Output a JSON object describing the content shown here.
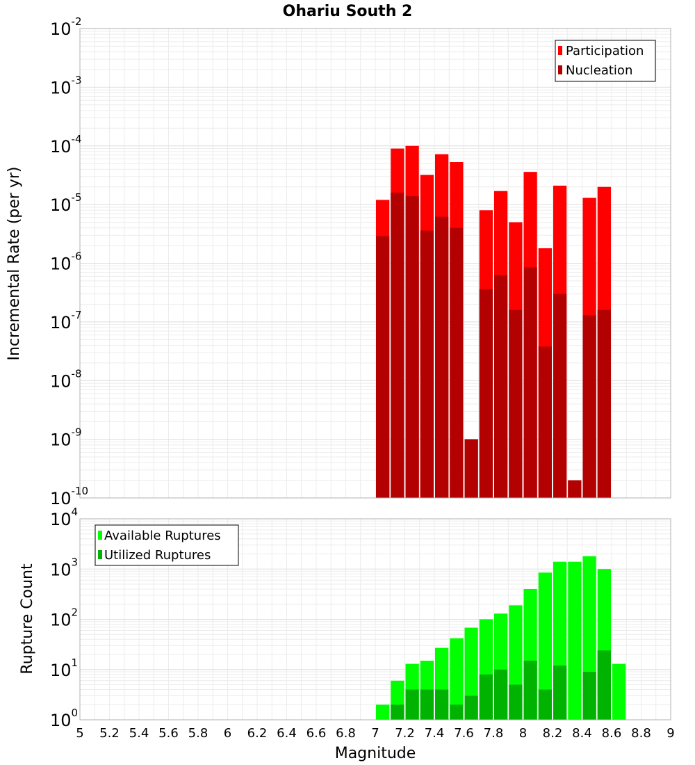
{
  "chart_data": [
    {
      "type": "bar",
      "title": "Ohariu South 2",
      "xlabel": "",
      "ylabel": "Incremental Rate (per yr)",
      "yscale": "log",
      "ylim_exponents": [
        -10,
        -2
      ],
      "xlim": [
        5,
        9
      ],
      "grid": true,
      "legend_position": "top-right",
      "bar_width": 0.1,
      "x": [
        7.05,
        7.15,
        7.25,
        7.35,
        7.45,
        7.55,
        7.65,
        7.75,
        7.85,
        7.95,
        8.05,
        8.15,
        8.25,
        8.35,
        8.45,
        8.55
      ],
      "series": [
        {
          "name": "Participation",
          "color": "#ff0000",
          "values": [
            1.2e-05,
            9e-05,
            0.0001,
            3.2e-05,
            7.2e-05,
            5.3e-05,
            1e-09,
            8e-06,
            1.7e-05,
            5e-06,
            3.6e-05,
            1.8e-06,
            2.1e-05,
            2e-10,
            1.3e-05,
            2e-05
          ]
        },
        {
          "name": "Nucleation",
          "color": "#b30000",
          "values": [
            2.9e-06,
            1.6e-05,
            1.4e-05,
            3.6e-06,
            6.2e-06,
            4e-06,
            1e-09,
            3.6e-07,
            6.3e-07,
            1.6e-07,
            8.5e-07,
            3.8e-08,
            3e-07,
            2e-10,
            1.3e-07,
            1.6e-07
          ]
        }
      ]
    },
    {
      "type": "bar",
      "title": "",
      "xlabel": "Magnitude",
      "ylabel": "Rupture Count",
      "yscale": "log",
      "ylim_exponents": [
        0,
        4
      ],
      "xlim": [
        5,
        9
      ],
      "xticks": [
        "5",
        "5.2",
        "5.4",
        "5.6",
        "5.8",
        "6",
        "6.2",
        "6.4",
        "6.6",
        "6.8",
        "7",
        "7.2",
        "7.4",
        "7.6",
        "7.8",
        "8",
        "8.2",
        "8.4",
        "8.6",
        "8.8",
        "9"
      ],
      "grid": true,
      "legend_position": "top-left",
      "bar_width": 0.1,
      "x": [
        6.45,
        6.75,
        6.85,
        6.95,
        7.05,
        7.15,
        7.25,
        7.35,
        7.45,
        7.55,
        7.65,
        7.75,
        7.85,
        7.95,
        8.05,
        8.15,
        8.25,
        8.35,
        8.45,
        8.55,
        8.65
      ],
      "series": [
        {
          "name": "Available Ruptures",
          "color": "#00ff00",
          "values": [
            1,
            1,
            1,
            1,
            2,
            6,
            13,
            15,
            27,
            42,
            68,
            100,
            130,
            190,
            400,
            850,
            1400,
            1400,
            1800,
            1000,
            13
          ]
        },
        {
          "name": "Utilized Ruptures",
          "color": "#00b300",
          "values": [
            0,
            0,
            0,
            0,
            1,
            2,
            4,
            4,
            4,
            2,
            3,
            8,
            10,
            5,
            15,
            4,
            12,
            1,
            9,
            24,
            0
          ]
        }
      ]
    }
  ],
  "tick_base": "10"
}
